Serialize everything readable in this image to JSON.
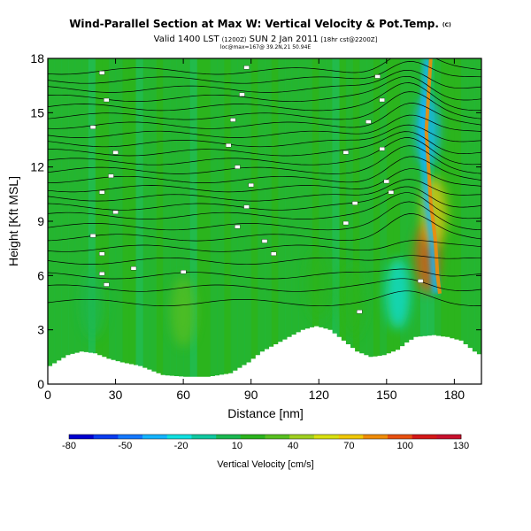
{
  "header": {
    "title": "Wind-Parallel Section at Max W: Vertical Velocity & Pot.Temp.",
    "title_mark": "(C)",
    "valid": "Valid 1400 LST",
    "valid_small": "(1200Z)",
    "valid_date": "SUN 2 Jan 2011",
    "valid_run": "[18hr cst@2200Z]",
    "location": "loc@max=167@ 39.2N,21 50.94E"
  },
  "chart_data": {
    "type": "heatmap",
    "xlabel": "Distance [nm]",
    "ylabel": "Height [Kft MSL]",
    "xlim": [
      0,
      192
    ],
    "ylim": [
      0,
      18
    ],
    "xticks": [
      0,
      30,
      60,
      90,
      120,
      150,
      180
    ],
    "yticks": [
      0,
      3,
      6,
      9,
      12,
      15,
      18
    ],
    "grid": false,
    "terrain_kft": [
      [
        0,
        1.0
      ],
      [
        4,
        1.3
      ],
      [
        8,
        1.6
      ],
      [
        14,
        1.8
      ],
      [
        20,
        1.7
      ],
      [
        26,
        1.4
      ],
      [
        32,
        1.2
      ],
      [
        40,
        1.0
      ],
      [
        50,
        0.5
      ],
      [
        60,
        0.4
      ],
      [
        70,
        0.4
      ],
      [
        80,
        0.6
      ],
      [
        88,
        1.2
      ],
      [
        94,
        1.8
      ],
      [
        100,
        2.2
      ],
      [
        106,
        2.6
      ],
      [
        112,
        3.0
      ],
      [
        118,
        3.2
      ],
      [
        124,
        3.0
      ],
      [
        130,
        2.4
      ],
      [
        136,
        1.8
      ],
      [
        142,
        1.5
      ],
      [
        148,
        1.6
      ],
      [
        154,
        1.9
      ],
      [
        158,
        2.3
      ],
      [
        162,
        2.6
      ],
      [
        170,
        2.7
      ],
      [
        176,
        2.6
      ],
      [
        182,
        2.4
      ],
      [
        188,
        1.8
      ],
      [
        192,
        1.5
      ]
    ],
    "background_color": "#2bb41e",
    "wind_band": {
      "path": [
        [
          168,
          18
        ],
        [
          167,
          16
        ],
        [
          166,
          14
        ],
        [
          167,
          12
        ],
        [
          168,
          10
        ],
        [
          170,
          8
        ],
        [
          171,
          6
        ],
        [
          172,
          5
        ]
      ],
      "labels_max": 130
    },
    "highlights": [
      {
        "x": 168,
        "y": 7.0,
        "value": 100
      },
      {
        "x": 171,
        "y": 9.5,
        "value": 70
      },
      {
        "x": 168,
        "y": 14.0,
        "value": -30
      },
      {
        "x": 155,
        "y": 5.0,
        "value": -20
      },
      {
        "x": 120,
        "y": 5.5,
        "value": 20
      },
      {
        "x": 135,
        "y": 4.5,
        "value": 20
      },
      {
        "x": 20,
        "y": 4.5,
        "value": 5
      },
      {
        "x": 60,
        "y": 4.0,
        "value": 30
      }
    ],
    "theta_isolines": [
      4.5,
      5.3,
      6.0,
      6.8,
      7.5,
      8.1,
      8.7,
      9.3,
      9.8,
      10.3,
      10.8,
      11.3,
      11.8,
      12.3,
      12.8,
      13.3,
      13.8,
      14.3,
      14.8,
      15.3,
      15.8,
      16.3,
      16.8,
      17.3
    ],
    "theta_labels": [
      {
        "x": 24,
        "y": 17.2
      },
      {
        "x": 26,
        "y": 15.7
      },
      {
        "x": 20,
        "y": 14.2
      },
      {
        "x": 30,
        "y": 12.8
      },
      {
        "x": 28,
        "y": 11.5
      },
      {
        "x": 24,
        "y": 10.6
      },
      {
        "x": 30,
        "y": 9.5
      },
      {
        "x": 20,
        "y": 8.2
      },
      {
        "x": 24,
        "y": 7.2
      },
      {
        "x": 38,
        "y": 6.4
      },
      {
        "x": 60,
        "y": 6.2
      },
      {
        "x": 88,
        "y": 17.5
      },
      {
        "x": 86,
        "y": 16.0
      },
      {
        "x": 82,
        "y": 14.6
      },
      {
        "x": 80,
        "y": 13.2
      },
      {
        "x": 84,
        "y": 12.0
      },
      {
        "x": 90,
        "y": 11.0
      },
      {
        "x": 88,
        "y": 9.8
      },
      {
        "x": 84,
        "y": 8.7
      },
      {
        "x": 96,
        "y": 7.9
      },
      {
        "x": 100,
        "y": 7.2
      },
      {
        "x": 146,
        "y": 17.0
      },
      {
        "x": 148,
        "y": 15.7
      },
      {
        "x": 142,
        "y": 14.5
      },
      {
        "x": 148,
        "y": 13.0
      },
      {
        "x": 132,
        "y": 12.8
      },
      {
        "x": 150,
        "y": 11.2
      },
      {
        "x": 152,
        "y": 10.6
      },
      {
        "x": 136,
        "y": 10.0
      },
      {
        "x": 132,
        "y": 8.9
      },
      {
        "x": 138,
        "y": 4.0
      },
      {
        "x": 24,
        "y": 6.1
      },
      {
        "x": 26,
        "y": 5.5
      },
      {
        "x": 165,
        "y": 5.7
      }
    ],
    "colorbar": {
      "ticks": [
        -80,
        -50,
        -20,
        10,
        40,
        70,
        100,
        130
      ],
      "label": "Vertical Velocity [cm/s]",
      "colors": [
        "#0000d0",
        "#0a3cf0",
        "#1478ff",
        "#14b4ff",
        "#10e0e0",
        "#10c8a0",
        "#1ab850",
        "#2bb41e",
        "#58c020",
        "#a0d020",
        "#d8e010",
        "#f0c808",
        "#f08c08",
        "#e85010",
        "#d41818",
        "#c8102c"
      ]
    }
  }
}
